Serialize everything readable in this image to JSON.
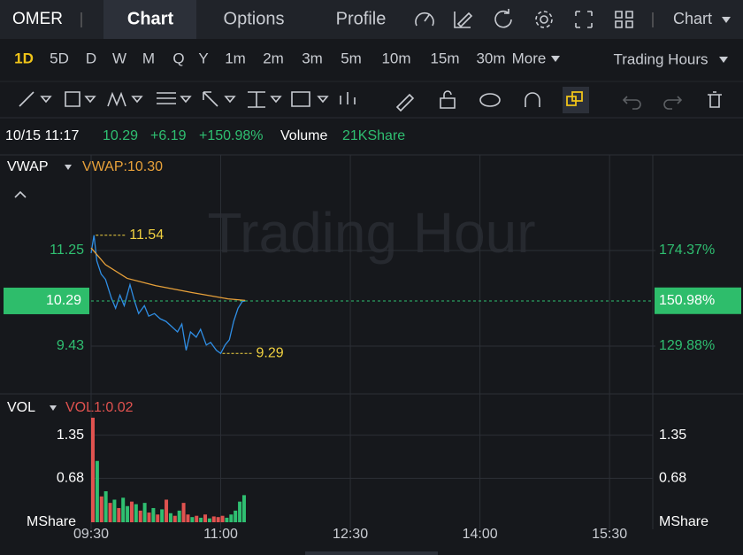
{
  "top_bar": {
    "ticker": "OMER",
    "tabs": [
      "Chart",
      "Options",
      "Profile"
    ],
    "active_tab": "Chart",
    "menu": "Chart"
  },
  "timeframes": [
    "1D",
    "5D",
    "D",
    "W",
    "M",
    "Q",
    "Y",
    "1m",
    "2m",
    "3m",
    "5m",
    "10m",
    "15m",
    "30m"
  ],
  "active_timeframe": "1D",
  "more": "More",
  "session": "Trading Hours",
  "info": {
    "datetime": "10/15 11:17",
    "price": "10.29",
    "change": "+6.19",
    "change_pct": "+150.98%",
    "volume_label": "Volume",
    "volume": "21KShare"
  },
  "watermark": "Trading Hour",
  "chart_data": [
    {
      "type": "line",
      "title": "VWAP",
      "indicator_label": "VWAP:10.30",
      "xlim": [
        "09:30",
        "16:00"
      ],
      "xticks": [
        "09:30",
        "11:00",
        "12:30",
        "14:00",
        "15:30"
      ],
      "ylim": [
        8.52,
        13.07
      ],
      "yticks": [
        11.25,
        9.43
      ],
      "y2lim": [
        107.63,
        218.86
      ],
      "y2ticks": [
        {
          "value": 174.37,
          "label": "174.37%"
        },
        {
          "value": 129.88,
          "label": "129.88%"
        }
      ],
      "grid": true,
      "series": [
        {
          "color": "#2f8ee5",
          "x": [
            "09:30",
            "09:32",
            "09:34",
            "09:37",
            "09:40",
            "09:44",
            "09:47",
            "09:50",
            "09:53",
            "09:57",
            "10:00",
            "10:03",
            "10:07",
            "10:10",
            "10:14",
            "10:18",
            "10:22",
            "10:26",
            "10:30",
            "10:33",
            "10:36",
            "10:39",
            "10:43",
            "10:46",
            "10:50",
            "10:53",
            "10:57",
            "11:00",
            "11:03",
            "11:06",
            "11:09",
            "11:12",
            "11:15",
            "11:17"
          ],
          "values": [
            11.2,
            11.54,
            11.05,
            10.8,
            10.7,
            10.35,
            10.15,
            10.4,
            10.2,
            10.6,
            10.3,
            10.05,
            10.2,
            10.0,
            10.05,
            9.95,
            9.9,
            9.8,
            9.7,
            9.85,
            9.35,
            9.7,
            9.6,
            9.75,
            9.45,
            9.5,
            9.35,
            9.29,
            9.45,
            9.55,
            9.9,
            10.15,
            10.28,
            10.29
          ]
        },
        {
          "name": "VWAP",
          "color": "#e8a13a",
          "x": [
            "09:30",
            "09:40",
            "09:55",
            "10:15",
            "10:40",
            "11:05",
            "11:17"
          ],
          "values": [
            11.3,
            10.98,
            10.72,
            10.58,
            10.45,
            10.33,
            10.3
          ]
        }
      ],
      "current": {
        "y": 10.29,
        "y2": {
          "value": 150.98,
          "label": "150.98%"
        }
      },
      "annotations": [
        {
          "x": "09:32",
          "y": 11.54
        },
        {
          "x": "11:00",
          "y": 9.29
        }
      ]
    },
    {
      "type": "bar",
      "title": "VOL",
      "indicator_label": "VOL1:0.02",
      "unit": "MShare",
      "xlim": [
        "09:30",
        "16:00"
      ],
      "ylim": [
        0,
        1.92
      ],
      "yticks": [
        1.35,
        0.68
      ],
      "grid": true,
      "x": [
        "09:30",
        "09:33",
        "09:36",
        "09:39",
        "09:42",
        "09:45",
        "09:48",
        "09:51",
        "09:54",
        "09:57",
        "10:00",
        "10:03",
        "10:06",
        "10:09",
        "10:12",
        "10:15",
        "10:18",
        "10:21",
        "10:24",
        "10:27",
        "10:30",
        "10:33",
        "10:36",
        "10:39",
        "10:42",
        "10:45",
        "10:48",
        "10:51",
        "10:54",
        "10:57",
        "11:00",
        "11:03",
        "11:06",
        "11:09",
        "11:12",
        "11:15"
      ],
      "values": [
        1.62,
        0.95,
        0.4,
        0.48,
        0.3,
        0.35,
        0.22,
        0.38,
        0.25,
        0.32,
        0.28,
        0.18,
        0.3,
        0.15,
        0.22,
        0.12,
        0.2,
        0.35,
        0.14,
        0.1,
        0.18,
        0.3,
        0.12,
        0.08,
        0.1,
        0.07,
        0.12,
        0.06,
        0.09,
        0.08,
        0.1,
        0.07,
        0.12,
        0.18,
        0.32,
        0.42
      ],
      "colors": [
        "#e0524f",
        "#2fbf71",
        "#e0524f",
        "#2fbf71",
        "#e0524f",
        "#2fbf71",
        "#e0524f",
        "#2fbf71",
        "#2fbf71",
        "#e0524f",
        "#2fbf71",
        "#e0524f",
        "#2fbf71",
        "#e0524f",
        "#2fbf71",
        "#e0524f",
        "#2fbf71",
        "#e0524f",
        "#2fbf71",
        "#e0524f",
        "#2fbf71",
        "#e0524f",
        "#e0524f",
        "#2fbf71",
        "#e0524f",
        "#2fbf71",
        "#e0524f",
        "#2fbf71",
        "#e0524f",
        "#e0524f",
        "#e0524f",
        "#2fbf71",
        "#2fbf71",
        "#2fbf71",
        "#2fbf71",
        "#2fbf71"
      ]
    }
  ]
}
